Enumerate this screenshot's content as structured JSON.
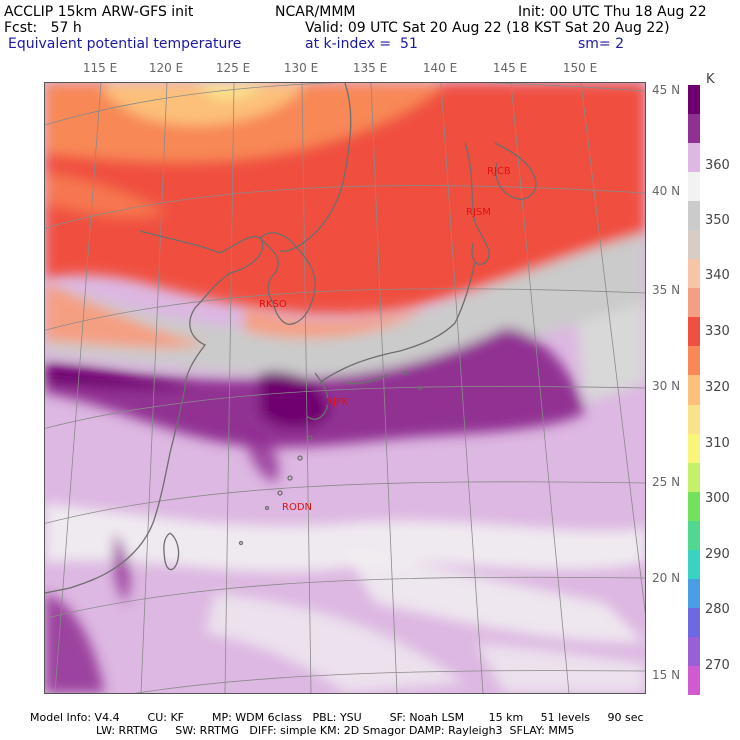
{
  "header": {
    "model_title": "ACCLIP 15km ARW-GFS init",
    "center": "NCAR/MMM",
    "init": "Init: 00 UTC Thu 18 Aug 22",
    "forecast": "Fcst:   57 h",
    "valid": "Valid: 09 UTC Sat 20 Aug 22 (18 KST Sat 20 Aug 22)",
    "field_name": "Equivalent potential temperature",
    "level": "at k-index =  51",
    "smoothing": "sm= 2"
  },
  "map": {
    "lon_labels": [
      "115 E",
      "120 E",
      "125 E",
      "130 E",
      "135 E",
      "140 E",
      "145 E",
      "150 E"
    ],
    "lat_labels": [
      "45 N",
      "40 N",
      "35 N",
      "30 N",
      "25 N",
      "20 N",
      "15 N"
    ],
    "stations": [
      "RJCB",
      "RJSM",
      "RKSO",
      "RJFK",
      "RODN"
    ]
  },
  "colorbar": {
    "unit": "K",
    "labels": [
      "360",
      "350",
      "340",
      "330",
      "320",
      "310",
      "300",
      "290",
      "280",
      "270"
    ],
    "colors": [
      "#6f006f",
      "#913093",
      "#ddb8e2",
      "#f2f2f2",
      "#cbcbcb",
      "#d7cdc5",
      "#f8c4a8",
      "#f59f82",
      "#f05040",
      "#f88856",
      "#fcc07a",
      "#fae28a",
      "#f8f57a",
      "#c4f06a",
      "#72e25c",
      "#52d88e",
      "#3ad2c2",
      "#4a9ee6",
      "#6e68e2",
      "#9a5ed6",
      "#d05ad2"
    ]
  },
  "footer": {
    "line1": "Model Info: V4.4        CU: KF        MP: WDM 6class   PBL: YSU        SF: Noah LSM       15 km     51 levels     90 sec",
    "line2": "LW: RRTMG     SW: RRTMG   DIFF: simple KM: 2D Smagor DAMP: Rayleigh3  SFLAY: MM5"
  }
}
